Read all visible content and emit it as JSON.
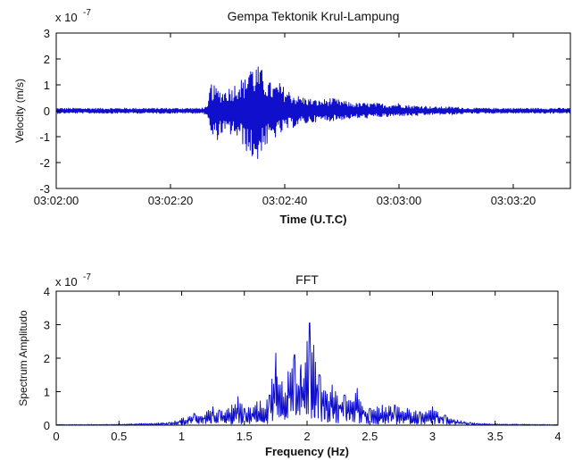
{
  "chart_data": [
    {
      "type": "line",
      "title": "Gempa Tektonik Krul-Lampung",
      "xlabel": "Time (U.T.C)",
      "ylabel": "Velocity (m/s)",
      "y_scale_base": "x 10",
      "y_scale_exponent": "-7",
      "xlim": [
        "03:02:00",
        "03:03:30"
      ],
      "ylim": [
        -3,
        3
      ],
      "x_tick_labels": [
        "03:02:00",
        "03:02:20",
        "03:02:40",
        "03:03:00",
        "03:03:20"
      ],
      "x_tick_seconds": [
        0,
        20,
        40,
        60,
        80
      ],
      "x_range_seconds": [
        0,
        90
      ],
      "y_ticks": [
        -3,
        -2,
        -1,
        0,
        1,
        2,
        3
      ],
      "grid": false,
      "series": [
        {
          "color": "#1010cc",
          "x_seconds": [
            0,
            5,
            10,
            15,
            20,
            25,
            26.5,
            27,
            28,
            29,
            30,
            31,
            32,
            33,
            34,
            34.5,
            35,
            36,
            37,
            38,
            39,
            40,
            42,
            44,
            46,
            48,
            50,
            52,
            54,
            56,
            58,
            60,
            62,
            64,
            66,
            68,
            70,
            72,
            75,
            78,
            81,
            84,
            87,
            90
          ],
          "envelope_max": [
            0.1,
            0.1,
            0.1,
            0.1,
            0.1,
            0.1,
            0.15,
            1.1,
            0.9,
            0.8,
            0.9,
            1.0,
            1.3,
            1.2,
            2.2,
            1.6,
            1.8,
            1.6,
            1.2,
            1.0,
            1.1,
            0.9,
            0.6,
            0.5,
            0.4,
            0.5,
            0.4,
            0.3,
            0.3,
            0.3,
            0.25,
            0.3,
            0.2,
            0.2,
            0.15,
            0.15,
            0.15,
            0.1,
            0.1,
            0.1,
            0.1,
            0.1,
            0.1,
            0.1
          ],
          "envelope_min": [
            -0.1,
            -0.1,
            -0.1,
            -0.1,
            -0.1,
            -0.1,
            -0.15,
            -1.1,
            -1.2,
            -0.9,
            -1.0,
            -0.9,
            -1.2,
            -1.4,
            -2.0,
            -1.8,
            -2.3,
            -1.5,
            -1.4,
            -1.1,
            -1.0,
            -0.8,
            -0.6,
            -0.5,
            -0.4,
            -0.4,
            -0.35,
            -0.3,
            -0.3,
            -0.25,
            -0.25,
            -0.2,
            -0.2,
            -0.2,
            -0.15,
            -0.15,
            -0.15,
            -0.1,
            -0.1,
            -0.1,
            -0.1,
            -0.1,
            -0.1,
            -0.1
          ]
        }
      ]
    },
    {
      "type": "line",
      "title": "FFT",
      "xlabel": "Frequency (Hz)",
      "ylabel": "Spectrum Amplitudo",
      "y_scale_base": "x 10",
      "y_scale_exponent": "-7",
      "xlim": [
        0,
        4
      ],
      "ylim": [
        0,
        4
      ],
      "x_ticks": [
        "0",
        "0.5",
        "1",
        "1.5",
        "2",
        "2.5",
        "3",
        "3.5",
        "4"
      ],
      "x_tick_values": [
        0,
        0.5,
        1,
        1.5,
        2,
        2.5,
        3,
        3.5,
        4
      ],
      "y_ticks": [
        0,
        1,
        2,
        3,
        4
      ],
      "grid": false,
      "series": [
        {
          "color": "#1010cc",
          "x": [
            0,
            0.5,
            0.9,
            1.0,
            1.1,
            1.2,
            1.25,
            1.3,
            1.4,
            1.45,
            1.5,
            1.6,
            1.7,
            1.75,
            1.8,
            1.85,
            1.9,
            1.95,
            2.0,
            2.02,
            2.1,
            2.2,
            2.3,
            2.4,
            2.5,
            2.6,
            2.7,
            2.8,
            2.9,
            3.0,
            3.1,
            3.2,
            3.3,
            3.5,
            4.0
          ],
          "y": [
            0.02,
            0.03,
            0.08,
            0.2,
            0.35,
            0.4,
            0.55,
            0.45,
            0.6,
            0.85,
            0.5,
            0.7,
            0.9,
            2.15,
            1.3,
            1.6,
            2.1,
            1.8,
            2.5,
            3.05,
            1.5,
            1.2,
            0.9,
            1.1,
            0.5,
            0.6,
            0.6,
            0.5,
            0.4,
            0.55,
            0.3,
            0.15,
            0.08,
            0.04,
            0.02
          ]
        }
      ]
    }
  ]
}
